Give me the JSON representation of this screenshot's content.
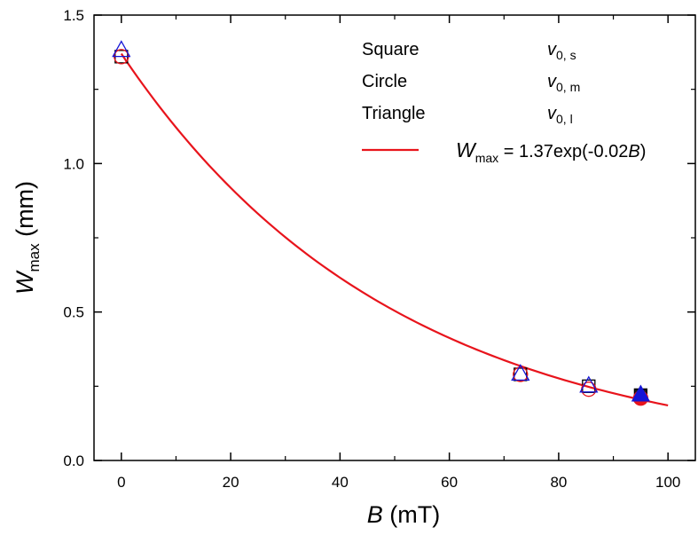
{
  "chart_data": {
    "type": "scatter",
    "xlabel": {
      "var": "B",
      "unit": " (mT)"
    },
    "ylabel": {
      "var": "W",
      "sub": "max",
      "unit": " (mm)"
    },
    "xlim": [
      -5,
      105
    ],
    "ylim": [
      0,
      1.5
    ],
    "x_ticks": [
      "0",
      "20",
      "40",
      "60",
      "80",
      "100"
    ],
    "y_ticks": [
      "0.0",
      "0.5",
      "1.0",
      "1.5"
    ],
    "grid": false,
    "legend_placement": "top-right",
    "series": [
      {
        "name": "Square",
        "marker": "square",
        "x": [
          0,
          73,
          85.5,
          95
        ],
        "y": [
          1.36,
          0.29,
          0.25,
          0.22
        ]
      },
      {
        "name": "Circle",
        "marker": "circle",
        "x": [
          0,
          73,
          85.5,
          95
        ],
        "y": [
          1.36,
          0.29,
          0.24,
          0.21
        ]
      },
      {
        "name": "Triangle",
        "marker": "triangle",
        "x": [
          0,
          73,
          85.5,
          95
        ],
        "y": [
          1.38,
          0.29,
          0.25,
          0.22
        ]
      }
    ],
    "legend": [
      {
        "label": "Square",
        "value_var": "v",
        "value_sub": "0, s"
      },
      {
        "label": "Circle",
        "value_var": "v",
        "value_sub": "0, m"
      },
      {
        "label": "Triangle",
        "value_var": "v",
        "value_sub": "0, l"
      }
    ],
    "fit": {
      "lhs_var": "W",
      "lhs_sub": "max",
      "rhs_prefix": " = 1.37exp(-0.02",
      "rhs_var": "B",
      "rhs_suffix": ")",
      "a": 1.37,
      "b": -0.02,
      "x_range": [
        0,
        100
      ]
    },
    "colors": {
      "fit": "#e8141c",
      "square_edge": "#000000",
      "circle_edge": "#e8141c",
      "triangle_edge": "#1515d6",
      "filled_square": "#1a1a1a",
      "filled_circle": "#e8141c",
      "filled_triangle": "#1515d6"
    }
  }
}
